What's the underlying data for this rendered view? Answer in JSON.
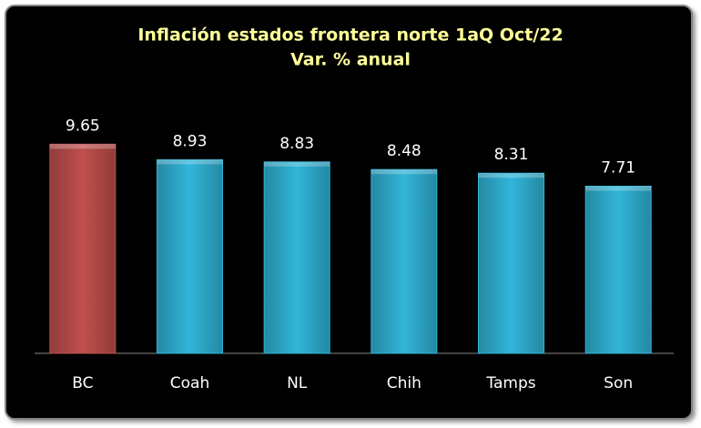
{
  "chart_data": {
    "type": "bar",
    "title": "Inflación estados frontera norte 1aQ Oct/22",
    "subtitle": "Var. % anual",
    "categories": [
      "BC",
      "Coah",
      "NL",
      "Chih",
      "Tamps",
      "Son"
    ],
    "values": [
      9.65,
      8.93,
      8.83,
      8.48,
      8.31,
      7.71
    ],
    "colors": [
      "#c0504d",
      "#31b6d9",
      "#31b6d9",
      "#31b6d9",
      "#31b6d9",
      "#31b6d9"
    ]
  }
}
